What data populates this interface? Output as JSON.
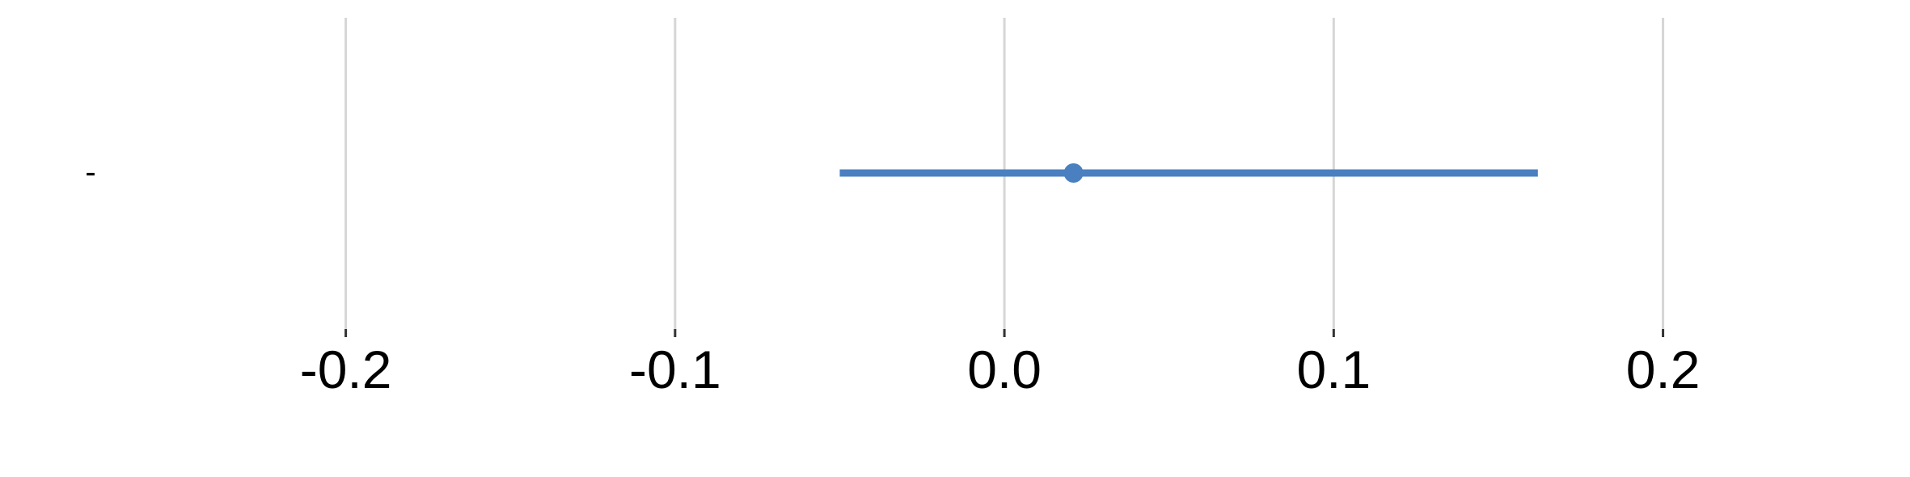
{
  "chart_data": {
    "type": "scatter",
    "title": "",
    "xlabel": "",
    "ylabel": "",
    "xlim": [
      -0.305,
      0.275
    ],
    "xticks": [
      -0.2,
      -0.1,
      0.0,
      0.1,
      0.2
    ],
    "xtick_labels": [
      "-0.2",
      "-0.1",
      "0.0",
      "0.1",
      "0.2"
    ],
    "grid": "vertical",
    "rows": [
      {
        "label": "-",
        "estimate": 0.021,
        "ci_low": -0.05,
        "ci_high": 0.162
      }
    ],
    "colors": {
      "point": "#4A80C0",
      "interval": "#4A80C0",
      "grid": "#D6D6D6",
      "tick": "#333333"
    }
  }
}
